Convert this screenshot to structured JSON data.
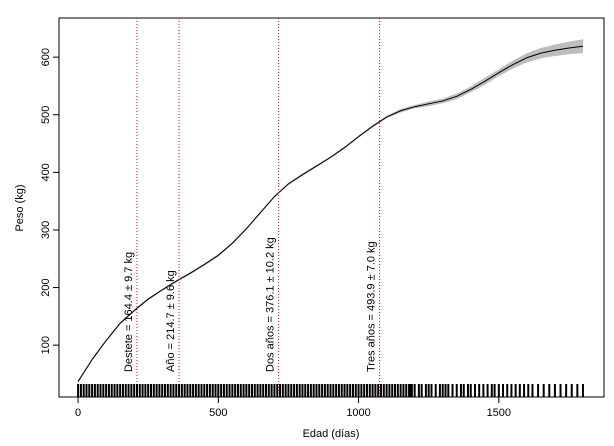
{
  "chart_data": {
    "type": "line",
    "x_label": "Edad (días)",
    "y_label": "Peso (kg)",
    "xlim": [
      -68,
      1875
    ],
    "ylim": [
      10,
      668
    ],
    "xticks": [
      0,
      500,
      1000,
      1500
    ],
    "yticks": [
      100,
      200,
      300,
      400,
      500,
      600
    ],
    "x": [
      0,
      50,
      100,
      150,
      200,
      250,
      300,
      350,
      400,
      450,
      500,
      550,
      600,
      650,
      700,
      750,
      800,
      850,
      900,
      950,
      1000,
      1050,
      1100,
      1150,
      1200,
      1250,
      1300,
      1350,
      1400,
      1450,
      1500,
      1550,
      1600,
      1650,
      1700,
      1750,
      1800
    ],
    "series": [
      {
        "color": "#000000",
        "values": [
          37,
          75,
          108,
          138,
          160,
          180,
          196,
          211,
          225,
          240,
          256,
          277,
          302,
          330,
          358,
          380,
          396,
          411,
          426,
          443,
          462,
          480,
          496,
          507,
          514,
          519,
          524,
          532,
          544,
          558,
          573,
          587,
          599,
          607,
          612,
          616,
          619
        ]
      }
    ],
    "band": {
      "color": "#bdbdbd",
      "lower": [
        35,
        73,
        106,
        136,
        158,
        178,
        194,
        209,
        223,
        238,
        254,
        275,
        300,
        328,
        356,
        378,
        394,
        409,
        424,
        441,
        460,
        478,
        494,
        504,
        511,
        515,
        520,
        527,
        539,
        552,
        567,
        580,
        591,
        598,
        602,
        605,
        607
      ],
      "upper": [
        39,
        77,
        110,
        140,
        162,
        182,
        198,
        213,
        227,
        242,
        258,
        279,
        304,
        332,
        360,
        382,
        398,
        413,
        428,
        445,
        464,
        482,
        498,
        510,
        517,
        523,
        528,
        537,
        549,
        564,
        579,
        594,
        607,
        616,
        622,
        627,
        631
      ]
    },
    "reference_lines": [
      {
        "x": 210,
        "label": "Destete = 164.4 ± 9.7 kg"
      },
      {
        "x": 360,
        "label": "Año = 214.7 ± 9.6 kg"
      },
      {
        "x": 715,
        "label": "Dos años = 376.1 ± 10.2 kg"
      },
      {
        "x": 1075,
        "label": "Tres años = 493.9 ± 7.0 kg"
      }
    ],
    "reference_color": "#ff0000",
    "rug": [
      0,
      10,
      20,
      30,
      40,
      50,
      60,
      70,
      80,
      90,
      100,
      110,
      120,
      130,
      140,
      150,
      160,
      170,
      180,
      190,
      200,
      210,
      220,
      230,
      240,
      250,
      260,
      270,
      280,
      290,
      300,
      310,
      320,
      330,
      340,
      350,
      360,
      370,
      380,
      390,
      400,
      410,
      420,
      430,
      440,
      450,
      460,
      470,
      480,
      490,
      500,
      510,
      520,
      530,
      540,
      550,
      560,
      570,
      580,
      590,
      600,
      610,
      620,
      630,
      640,
      650,
      660,
      670,
      680,
      690,
      700,
      710,
      720,
      730,
      740,
      750,
      760,
      770,
      780,
      790,
      800,
      810,
      820,
      830,
      840,
      850,
      860,
      870,
      880,
      890,
      900,
      910,
      920,
      930,
      940,
      950,
      960,
      970,
      980,
      990,
      1000,
      1010,
      1020,
      1030,
      1040,
      1050,
      1060,
      1070,
      1080,
      1090,
      1100,
      1110,
      1120,
      1130,
      1140,
      1150,
      1160,
      1170,
      1180,
      1185,
      1190,
      1200,
      1215,
      1225,
      1240,
      1250,
      1260,
      1275,
      1290,
      1300,
      1310,
      1320,
      1335,
      1350,
      1365,
      1375,
      1390,
      1400,
      1415,
      1430,
      1445,
      1460,
      1475,
      1485,
      1500,
      1515,
      1530,
      1545,
      1560,
      1575,
      1590,
      1605,
      1620,
      1640,
      1660,
      1680,
      1700,
      1720,
      1740,
      1760,
      1780,
      1800
    ]
  }
}
